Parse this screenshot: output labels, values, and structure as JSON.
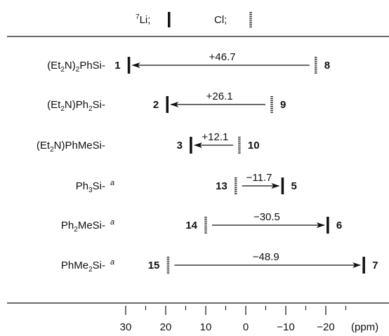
{
  "legend": {
    "li_label_sup": "7",
    "li_label": "Li;",
    "cl_label": "Cl;"
  },
  "rows": [
    {
      "label_parts": [
        [
          "(Et",
          ""
        ],
        [
          "2",
          "sub"
        ],
        [
          "N)",
          ""
        ],
        [
          "2",
          "sub"
        ],
        [
          "PhSi-",
          ""
        ]
      ],
      "footnote": "",
      "li_id": "1",
      "cl_id": "8",
      "li_ppm": 29.2,
      "cl_ppm": -17.5,
      "shift_text": "+46.7"
    },
    {
      "label_parts": [
        [
          "(Et",
          ""
        ],
        [
          "2",
          "sub"
        ],
        [
          "N)Ph",
          ""
        ],
        [
          "2",
          "sub"
        ],
        [
          "Si-",
          ""
        ]
      ],
      "footnote": "",
      "li_id": "2",
      "cl_id": "9",
      "li_ppm": 19.6,
      "cl_ppm": -6.5,
      "shift_text": "+26.1"
    },
    {
      "label_parts": [
        [
          "(Et",
          ""
        ],
        [
          "2",
          "sub"
        ],
        [
          "N)PhMeSi-",
          ""
        ]
      ],
      "footnote": "",
      "li_id": "3",
      "cl_id": "10",
      "li_ppm": 13.7,
      "cl_ppm": 1.6,
      "shift_text": "+12.1"
    },
    {
      "label_parts": [
        [
          "Ph",
          ""
        ],
        [
          "3",
          "sub"
        ],
        [
          "Si-",
          ""
        ]
      ],
      "footnote": "a",
      "li_id": "5",
      "cl_id": "13",
      "li_ppm": -9.2,
      "cl_ppm": 2.5,
      "shift_text": "−11.7"
    },
    {
      "label_parts": [
        [
          "Ph",
          ""
        ],
        [
          "2",
          "sub"
        ],
        [
          "MeSi-",
          ""
        ]
      ],
      "footnote": "a",
      "li_id": "6",
      "cl_id": "14",
      "li_ppm": -20.5,
      "cl_ppm": 10.0,
      "shift_text": "−30.5"
    },
    {
      "label_parts": [
        [
          "PhMe",
          ""
        ],
        [
          "2",
          "sub"
        ],
        [
          "Si-",
          ""
        ]
      ],
      "footnote": "a",
      "li_id": "7",
      "cl_id": "15",
      "li_ppm": -29.5,
      "cl_ppm": 19.4,
      "shift_text": "−48.9"
    }
  ],
  "axis": {
    "ticks": [
      30,
      20,
      10,
      0,
      -10,
      -20
    ],
    "tick_labels": [
      "30",
      "20",
      "10",
      "0",
      "−10",
      "−20"
    ],
    "unit": "(ppm)",
    "range": [
      35,
      -35
    ]
  }
}
